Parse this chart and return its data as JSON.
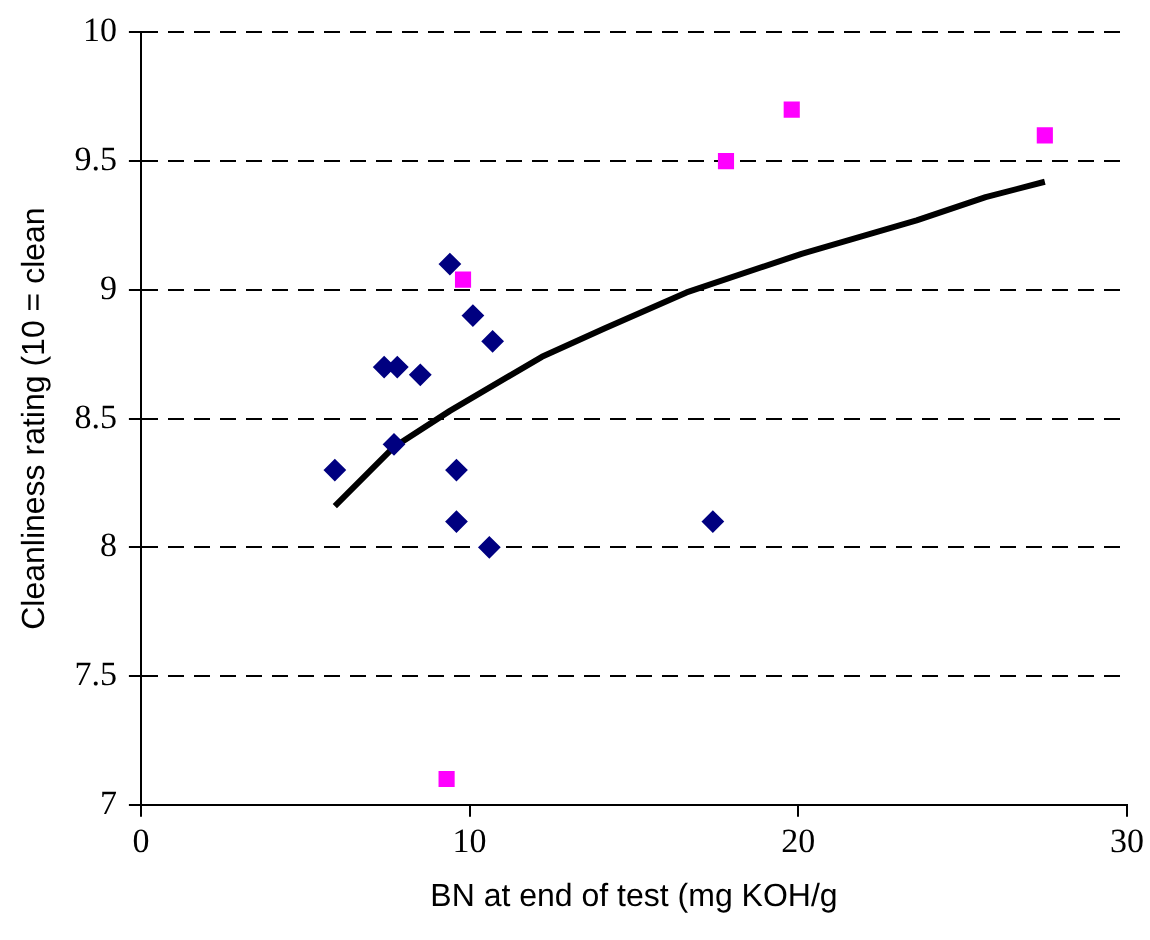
{
  "chart_data": {
    "type": "scatter",
    "xlabel": "BN at end of test (mg KOH/g",
    "ylabel": "Cleanliness rating (10 = clean",
    "xlim": [
      0,
      30
    ],
    "xticks": [
      0,
      10,
      20,
      30
    ],
    "ylim": [
      7,
      10
    ],
    "yticks": [
      7,
      7.5,
      8,
      8.5,
      9,
      9.5,
      10
    ],
    "grid": "y",
    "legend": false,
    "series": [
      {
        "color": "#000080",
        "marker": "diamond",
        "x": [
          5.9,
          7.4,
          7.8,
          8.5,
          7.7,
          9.4,
          10.1,
          10.7,
          9.6,
          9.6,
          10.6,
          17.4
        ],
        "values": [
          8.3,
          8.7,
          8.7,
          8.67,
          8.4,
          9.1,
          8.9,
          8.8,
          8.3,
          8.1,
          8.0,
          8.1
        ]
      },
      {
        "color": "#ff00ff",
        "marker": "square",
        "x": [
          9.8,
          17.8,
          19.8,
          27.5,
          9.3
        ],
        "values": [
          9.04,
          9.5,
          9.7,
          9.6,
          7.1
        ]
      },
      {
        "type": "line",
        "color": "#000000",
        "marker": "none",
        "line_style": "solid",
        "x": [
          5.9,
          7.7,
          9.4,
          12.2,
          14.1,
          16.6,
          20.1,
          23.6,
          25.7,
          27.5
        ],
        "values": [
          8.16,
          8.39,
          8.53,
          8.74,
          8.85,
          8.99,
          9.14,
          9.27,
          9.36,
          9.42
        ]
      }
    ]
  }
}
